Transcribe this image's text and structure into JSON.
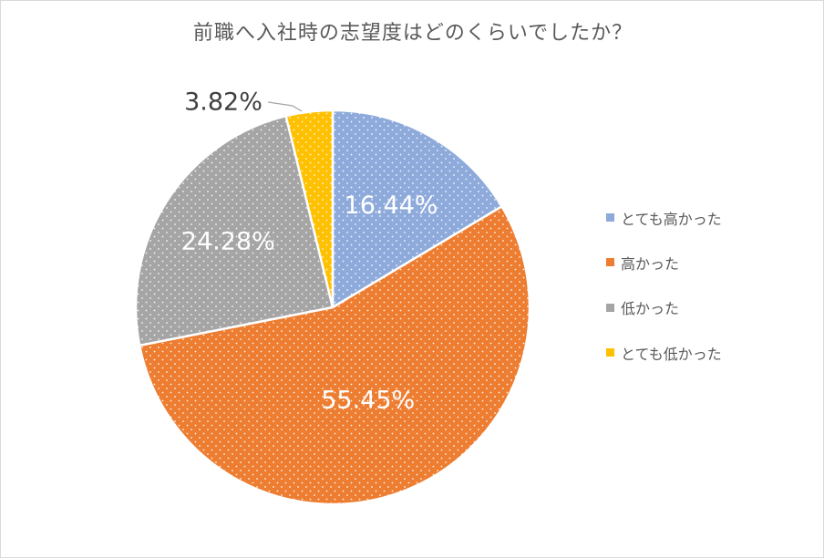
{
  "chart_data": {
    "type": "pie",
    "title": "前職へ入社時の志望度はどのくらいでしたか？",
    "categories": [
      "とても高かった",
      "高かった",
      "低かった",
      "とても低かった"
    ],
    "values": [
      16.44,
      55.45,
      24.28,
      3.82
    ],
    "data_labels": [
      "16.44%",
      "55.45%",
      "24.28%",
      "3.82%"
    ],
    "colors": [
      "#8eaadb",
      "#ed7d31",
      "#a5a5a5",
      "#ffc000"
    ],
    "start_angle": "12 o'clock, clockwise",
    "legend_position": "right",
    "pattern": "white dotted fill"
  }
}
